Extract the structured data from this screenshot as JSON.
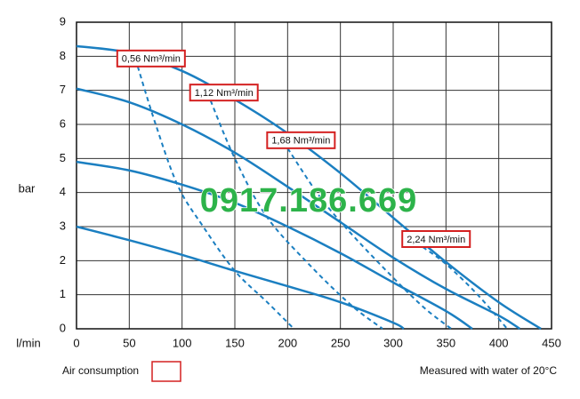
{
  "chart_data": {
    "type": "line",
    "y_label": "bar",
    "x_label": "l/min",
    "xlim": [
      0,
      450
    ],
    "ylim": [
      0,
      9
    ],
    "xticks": [
      0,
      50,
      100,
      150,
      200,
      250,
      300,
      350,
      400,
      450
    ],
    "yticks": [
      0,
      1,
      2,
      3,
      4,
      5,
      6,
      7,
      8,
      9
    ],
    "grid": true,
    "series": [
      {
        "color": "#1b7fc1",
        "style": "solid",
        "x": [
          0,
          50,
          100,
          150,
          200,
          250,
          300,
          350,
          400,
          440
        ],
        "values": [
          8.3,
          8.1,
          7.57,
          6.73,
          5.74,
          4.57,
          3.26,
          1.96,
          0.78,
          0
        ]
      },
      {
        "color": "#1b7fc1",
        "style": "solid",
        "x": [
          0,
          50,
          100,
          150,
          200,
          250,
          300,
          350,
          400,
          420
        ],
        "values": [
          7.05,
          6.65,
          6.0,
          5.17,
          4.17,
          3.13,
          2.09,
          1.17,
          0.39,
          0
        ]
      },
      {
        "color": "#1b7fc1",
        "style": "solid",
        "x": [
          0,
          50,
          100,
          150,
          200,
          250,
          300,
          350,
          375
        ],
        "values": [
          4.9,
          4.65,
          4.23,
          3.7,
          3.0,
          2.22,
          1.36,
          0.52,
          0
        ]
      },
      {
        "color": "#1b7fc1",
        "style": "solid",
        "x": [
          0,
          50,
          100,
          150,
          200,
          250,
          300,
          310
        ],
        "values": [
          3.0,
          2.6,
          2.17,
          1.7,
          1.25,
          0.78,
          0.18,
          0
        ]
      },
      {
        "name": "0,56 Nm³/min",
        "color": "#1b7fc1",
        "style": "dashed",
        "x": [
          58,
          75,
          96,
          120,
          150,
          180,
          206
        ],
        "values": [
          7.7,
          6.0,
          4.2,
          3.0,
          1.7,
          0.8,
          0
        ]
      },
      {
        "name": "1,12 Nm³/min",
        "color": "#1b7fc1",
        "style": "dashed",
        "x": [
          127,
          150,
          180,
          220,
          260,
          290
        ],
        "values": [
          6.7,
          5.0,
          3.3,
          1.9,
          0.7,
          0
        ]
      },
      {
        "name": "1,68 Nm³/min",
        "color": "#1b7fc1",
        "style": "dashed",
        "x": [
          200,
          230,
          260,
          300,
          330,
          355
        ],
        "values": [
          5.3,
          3.9,
          2.8,
          1.5,
          0.6,
          0
        ]
      },
      {
        "name": "2,24 Nm³/min",
        "color": "#1b7fc1",
        "style": "dashed",
        "x": [
          328,
          350,
          380,
          408
        ],
        "values": [
          2.4,
          1.9,
          1.0,
          0
        ]
      }
    ],
    "legend_label": "Air consumption",
    "legend_color": "#d42020",
    "note": "Measured with water of 20°C",
    "watermark": "0917.186.669"
  }
}
